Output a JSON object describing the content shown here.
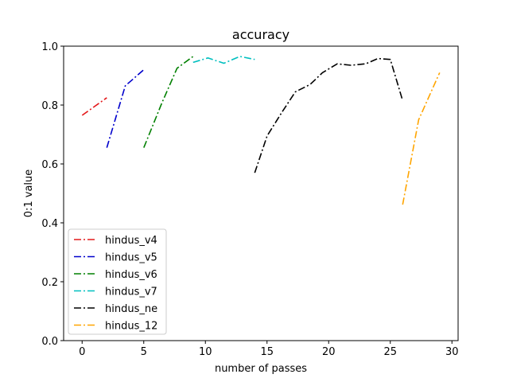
{
  "chart_data": {
    "type": "line",
    "title": "accuracy",
    "xlabel": "number of passes",
    "ylabel": "0:1 value",
    "xlim": [
      -1.5,
      30.5
    ],
    "ylim": [
      0.0,
      1.0
    ],
    "xticks": [
      0,
      5,
      10,
      15,
      20,
      25,
      30
    ],
    "yticks": [
      0.0,
      0.2,
      0.4,
      0.6,
      0.8,
      1.0
    ],
    "xtick_labels": [
      "0",
      "5",
      "10",
      "15",
      "20",
      "25",
      "30"
    ],
    "ytick_labels": [
      "0.0",
      "0.2",
      "0.4",
      "0.6",
      "0.8",
      "1.0"
    ],
    "grid": false,
    "legend_position": "lower-left",
    "line_style": "dashdot",
    "series": [
      {
        "name": "hindus_v4",
        "color": "#e41a1c",
        "x": [
          0,
          2
        ],
        "y": [
          0.765,
          0.825
        ]
      },
      {
        "name": "hindus_v5",
        "color": "#0000cc",
        "x": [
          2,
          3.5,
          5
        ],
        "y": [
          0.655,
          0.865,
          0.92
        ]
      },
      {
        "name": "hindus_v6",
        "color": "#008000",
        "x": [
          5,
          6.5,
          7.7,
          9
        ],
        "y": [
          0.655,
          0.81,
          0.925,
          0.965
        ]
      },
      {
        "name": "hindus_v7",
        "color": "#00bfbf",
        "x": [
          9,
          10.2,
          11.5,
          12.8,
          14
        ],
        "y": [
          0.945,
          0.96,
          0.942,
          0.965,
          0.955
        ]
      },
      {
        "name": "hindus_ne",
        "color": "#000000",
        "x": [
          14,
          15,
          16.2,
          17.3,
          18.5,
          19.5,
          20.7,
          21.8,
          23,
          24,
          25,
          26
        ],
        "y": [
          0.57,
          0.695,
          0.775,
          0.845,
          0.87,
          0.91,
          0.94,
          0.935,
          0.94,
          0.958,
          0.955,
          0.815
        ]
      },
      {
        "name": "hindus_12",
        "color": "#ffa500",
        "x": [
          26,
          27.3,
          29
        ],
        "y": [
          0.462,
          0.75,
          0.91
        ]
      }
    ]
  }
}
